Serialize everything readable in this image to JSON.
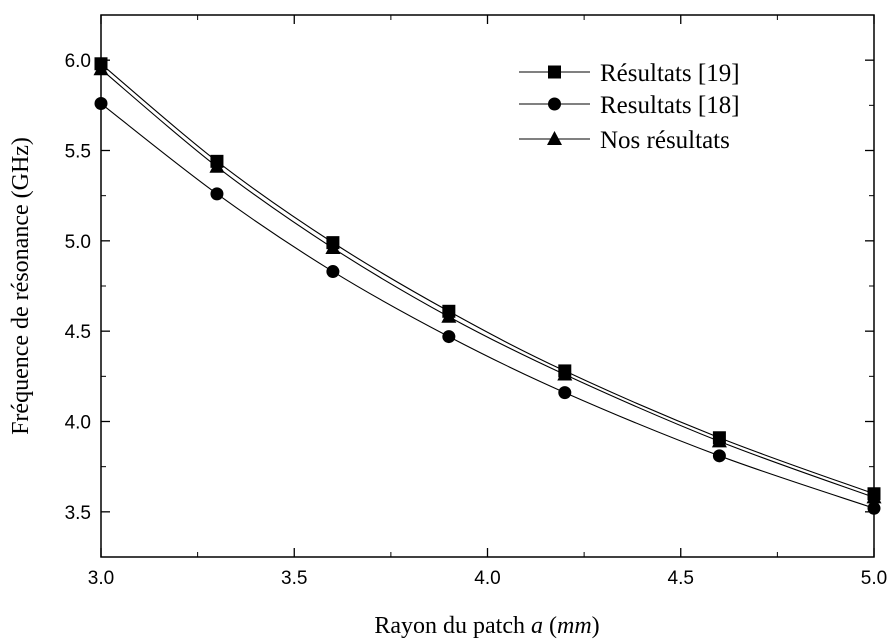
{
  "chart_data": {
    "type": "line",
    "x": [
      3.0,
      3.3,
      3.6,
      3.9,
      4.2,
      4.6,
      5.0
    ],
    "series": [
      {
        "name": "Résultats [19]",
        "marker": "square",
        "values": [
          5.98,
          5.44,
          4.99,
          4.61,
          4.28,
          3.91,
          3.6
        ]
      },
      {
        "name": "Resultats [18]",
        "marker": "circle",
        "values": [
          5.76,
          5.26,
          4.83,
          4.47,
          4.16,
          3.81,
          3.52
        ]
      },
      {
        "name": "Nos résultats",
        "marker": "triangle",
        "values": [
          5.95,
          5.41,
          4.96,
          4.58,
          4.26,
          3.89,
          3.58
        ]
      }
    ],
    "xlabel_prefix": "Rayon du patch ",
    "xlabel_var": "a",
    "xlabel_open": " (",
    "xlabel_unit": "mm",
    "xlabel_close": ")",
    "ylabel": "Fréquence de résonance (GHz)",
    "xlim": [
      3.0,
      5.0
    ],
    "ylim": [
      3.25,
      6.25
    ],
    "xticks": [
      "3.0",
      "3.5",
      "4.0",
      "4.5",
      "5.0"
    ],
    "yticks": [
      "3.5",
      "4.0",
      "4.5",
      "5.0",
      "5.5",
      "6.0"
    ],
    "legend_position": "top-right",
    "grid": false,
    "line_color": "#000000"
  }
}
